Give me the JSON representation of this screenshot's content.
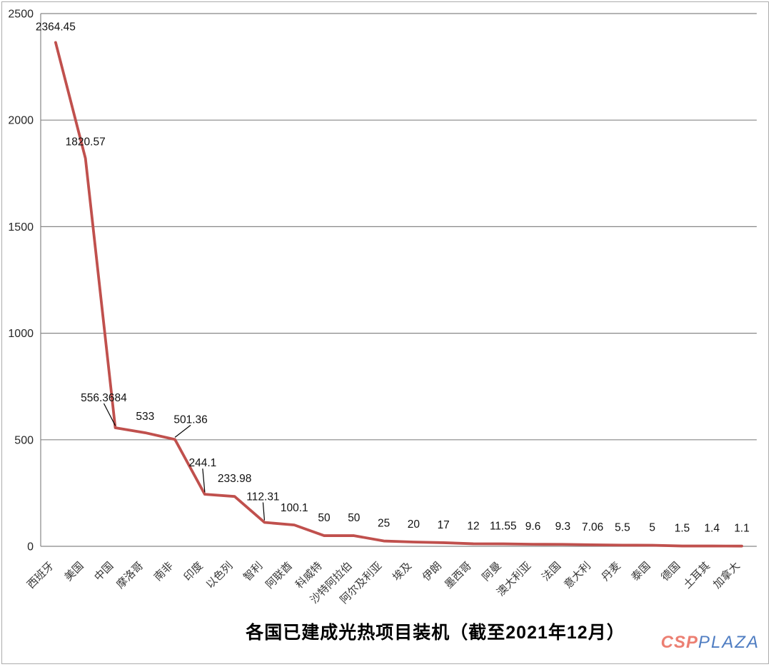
{
  "chart_data": {
    "type": "line",
    "title": "各国已建成光热项目装机（截至2021年12月）",
    "categories": [
      "西班牙",
      "美国",
      "中国",
      "摩洛哥",
      "南非",
      "印度",
      "以色列",
      "智利",
      "阿联酋",
      "科威特",
      "沙特阿拉伯",
      "阿尔及利亚",
      "埃及",
      "伊朗",
      "墨西哥",
      "阿曼",
      "澳大利亚",
      "法国",
      "意大利",
      "丹麦",
      "泰国",
      "德国",
      "土耳其",
      "加拿大"
    ],
    "values": [
      2364.45,
      1820.57,
      556.3684,
      533,
      501.36,
      244.1,
      233.98,
      112.31,
      100.1,
      50,
      50,
      25,
      20,
      17,
      12,
      11.55,
      9.6,
      9.3,
      7.06,
      5.5,
      5,
      1.5,
      1.4,
      1.1
    ],
    "labels": [
      "2364.45",
      "1820.57",
      "556.3684",
      "533",
      "501.36",
      "244.1",
      "233.98",
      "112.31",
      "100.1",
      "50",
      "50",
      "25",
      "20",
      "17",
      "12",
      "11.55",
      "9.6",
      "9.3",
      "7.06",
      "5.5",
      "5",
      "1.5",
      "1.4",
      "1.1"
    ],
    "ylim": [
      0,
      2500
    ],
    "yticks": [
      0,
      500,
      1000,
      1500,
      2000,
      2500
    ],
    "grid": true,
    "legend": false,
    "xlabel": "",
    "ylabel": "",
    "colors": {
      "line": "#C0504D",
      "grid": "#878787",
      "axis_text": "#262626",
      "data_label": "#111111",
      "leader": "#000000"
    },
    "label_offsets": {
      "default": [
        0,
        -25
      ],
      "overrides": {
        "0": [
          0,
          -22,
          false
        ],
        "1": [
          0,
          -23,
          false
        ],
        "2": [
          -16,
          -42,
          true
        ],
        "3": [
          0,
          -23,
          false
        ],
        "4": [
          22,
          -28,
          true
        ],
        "5": [
          -3,
          -44,
          true
        ],
        "7": [
          -2,
          -36,
          true
        ],
        "8": [
          0,
          -24,
          false
        ]
      }
    }
  },
  "branding": {
    "csp": "CSP",
    "plaza": "PLAZA",
    "csp_color": "#EC7F72",
    "plaza_color": "#4F7DC2"
  }
}
